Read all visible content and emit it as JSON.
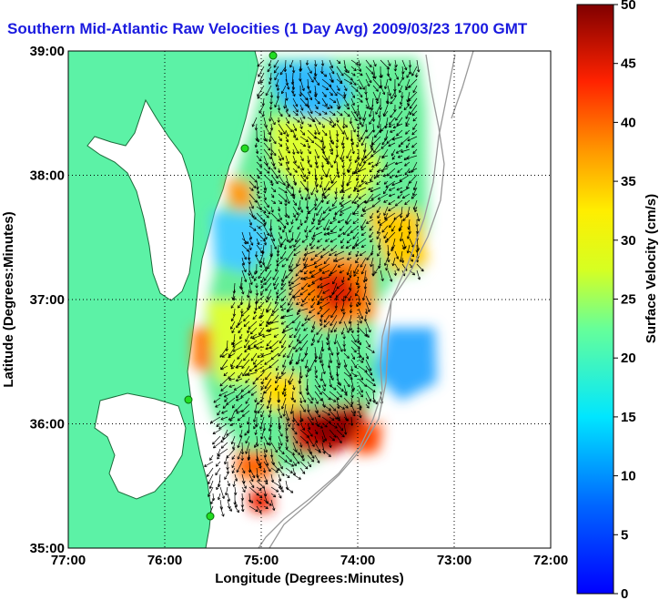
{
  "title": "Southern Mid-Atlantic Raw Velocities (1 Day Avg) 2009/03/23 1700 GMT",
  "x_axis": {
    "label": "Longitude (Degrees:Minutes)",
    "ticks": [
      "77:00",
      "76:00",
      "75:00",
      "74:00",
      "73:00",
      "72:00"
    ]
  },
  "y_axis": {
    "label": "Latitude (Degrees:Minutes)",
    "ticks": [
      "39:00",
      "38:00",
      "37:00",
      "36:00",
      "35:00"
    ]
  },
  "colorbar": {
    "label": "Surface Velocity (cm/s)",
    "ticks": [
      "0",
      "5",
      "10",
      "15",
      "20",
      "25",
      "30",
      "35",
      "40",
      "45",
      "50"
    ],
    "range": [
      0,
      50
    ],
    "colormap": "jet"
  },
  "map": {
    "extent": {
      "lon": [
        -77,
        -72
      ],
      "lat": [
        35,
        39
      ]
    },
    "grid": "dotted",
    "land_color": "#5cf2a6",
    "water_color": "#ffffff",
    "station_color": "#22dd22"
  }
}
